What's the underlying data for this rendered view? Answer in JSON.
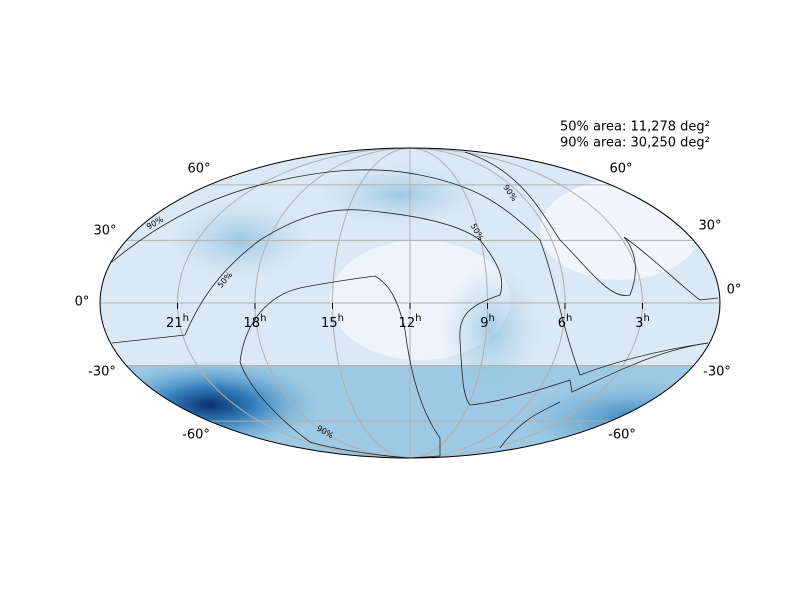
{
  "annotations": [
    "50% area: 11,278 deg²",
    "90% area: 30,250 deg²"
  ],
  "lat_labels": [
    "60°",
    "30°",
    "0°",
    "-30°",
    "-60°"
  ],
  "ra_labels": [
    "21",
    "18",
    "15",
    "12",
    "9",
    "6",
    "3"
  ],
  "ra_unit": "h",
  "contour_labels": [
    "90%",
    "50%"
  ]
}
